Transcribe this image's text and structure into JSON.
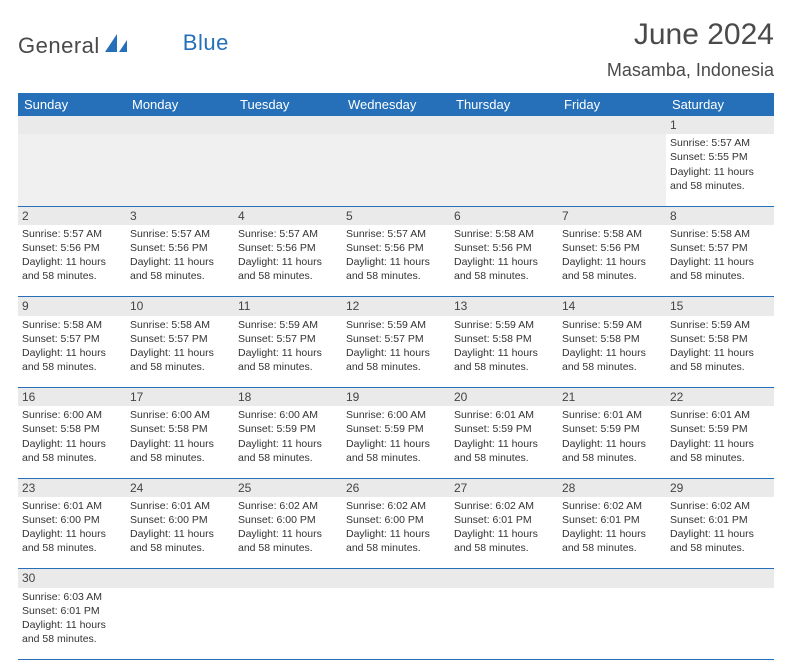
{
  "logo": {
    "part1": "General",
    "part2": "Blue"
  },
  "title": "June 2024",
  "location": "Masamba, Indonesia",
  "colors": {
    "headerbg": "#2570b8",
    "headerfg": "#ffffff",
    "daynum_bg": "#eaeaea",
    "cell_border": "#2570b8",
    "empty_bg": "#f0f0f0",
    "text": "#333333",
    "title_color": "#4a4a4a"
  },
  "weekdays": [
    "Sunday",
    "Monday",
    "Tuesday",
    "Wednesday",
    "Thursday",
    "Friday",
    "Saturday"
  ],
  "weeks": [
    [
      null,
      null,
      null,
      null,
      null,
      null,
      {
        "n": "1",
        "sr": "5:57 AM",
        "ss": "5:55 PM",
        "dl": "11 hours and 58 minutes."
      }
    ],
    [
      {
        "n": "2",
        "sr": "5:57 AM",
        "ss": "5:56 PM",
        "dl": "11 hours and 58 minutes."
      },
      {
        "n": "3",
        "sr": "5:57 AM",
        "ss": "5:56 PM",
        "dl": "11 hours and 58 minutes."
      },
      {
        "n": "4",
        "sr": "5:57 AM",
        "ss": "5:56 PM",
        "dl": "11 hours and 58 minutes."
      },
      {
        "n": "5",
        "sr": "5:57 AM",
        "ss": "5:56 PM",
        "dl": "11 hours and 58 minutes."
      },
      {
        "n": "6",
        "sr": "5:58 AM",
        "ss": "5:56 PM",
        "dl": "11 hours and 58 minutes."
      },
      {
        "n": "7",
        "sr": "5:58 AM",
        "ss": "5:56 PM",
        "dl": "11 hours and 58 minutes."
      },
      {
        "n": "8",
        "sr": "5:58 AM",
        "ss": "5:57 PM",
        "dl": "11 hours and 58 minutes."
      }
    ],
    [
      {
        "n": "9",
        "sr": "5:58 AM",
        "ss": "5:57 PM",
        "dl": "11 hours and 58 minutes."
      },
      {
        "n": "10",
        "sr": "5:58 AM",
        "ss": "5:57 PM",
        "dl": "11 hours and 58 minutes."
      },
      {
        "n": "11",
        "sr": "5:59 AM",
        "ss": "5:57 PM",
        "dl": "11 hours and 58 minutes."
      },
      {
        "n": "12",
        "sr": "5:59 AM",
        "ss": "5:57 PM",
        "dl": "11 hours and 58 minutes."
      },
      {
        "n": "13",
        "sr": "5:59 AM",
        "ss": "5:58 PM",
        "dl": "11 hours and 58 minutes."
      },
      {
        "n": "14",
        "sr": "5:59 AM",
        "ss": "5:58 PM",
        "dl": "11 hours and 58 minutes."
      },
      {
        "n": "15",
        "sr": "5:59 AM",
        "ss": "5:58 PM",
        "dl": "11 hours and 58 minutes."
      }
    ],
    [
      {
        "n": "16",
        "sr": "6:00 AM",
        "ss": "5:58 PM",
        "dl": "11 hours and 58 minutes."
      },
      {
        "n": "17",
        "sr": "6:00 AM",
        "ss": "5:58 PM",
        "dl": "11 hours and 58 minutes."
      },
      {
        "n": "18",
        "sr": "6:00 AM",
        "ss": "5:59 PM",
        "dl": "11 hours and 58 minutes."
      },
      {
        "n": "19",
        "sr": "6:00 AM",
        "ss": "5:59 PM",
        "dl": "11 hours and 58 minutes."
      },
      {
        "n": "20",
        "sr": "6:01 AM",
        "ss": "5:59 PM",
        "dl": "11 hours and 58 minutes."
      },
      {
        "n": "21",
        "sr": "6:01 AM",
        "ss": "5:59 PM",
        "dl": "11 hours and 58 minutes."
      },
      {
        "n": "22",
        "sr": "6:01 AM",
        "ss": "5:59 PM",
        "dl": "11 hours and 58 minutes."
      }
    ],
    [
      {
        "n": "23",
        "sr": "6:01 AM",
        "ss": "6:00 PM",
        "dl": "11 hours and 58 minutes."
      },
      {
        "n": "24",
        "sr": "6:01 AM",
        "ss": "6:00 PM",
        "dl": "11 hours and 58 minutes."
      },
      {
        "n": "25",
        "sr": "6:02 AM",
        "ss": "6:00 PM",
        "dl": "11 hours and 58 minutes."
      },
      {
        "n": "26",
        "sr": "6:02 AM",
        "ss": "6:00 PM",
        "dl": "11 hours and 58 minutes."
      },
      {
        "n": "27",
        "sr": "6:02 AM",
        "ss": "6:01 PM",
        "dl": "11 hours and 58 minutes."
      },
      {
        "n": "28",
        "sr": "6:02 AM",
        "ss": "6:01 PM",
        "dl": "11 hours and 58 minutes."
      },
      {
        "n": "29",
        "sr": "6:02 AM",
        "ss": "6:01 PM",
        "dl": "11 hours and 58 minutes."
      }
    ],
    [
      {
        "n": "30",
        "sr": "6:03 AM",
        "ss": "6:01 PM",
        "dl": "11 hours and 58 minutes."
      },
      null,
      null,
      null,
      null,
      null,
      null
    ]
  ],
  "labels": {
    "sunrise": "Sunrise: ",
    "sunset": "Sunset: ",
    "daylight": "Daylight: "
  }
}
